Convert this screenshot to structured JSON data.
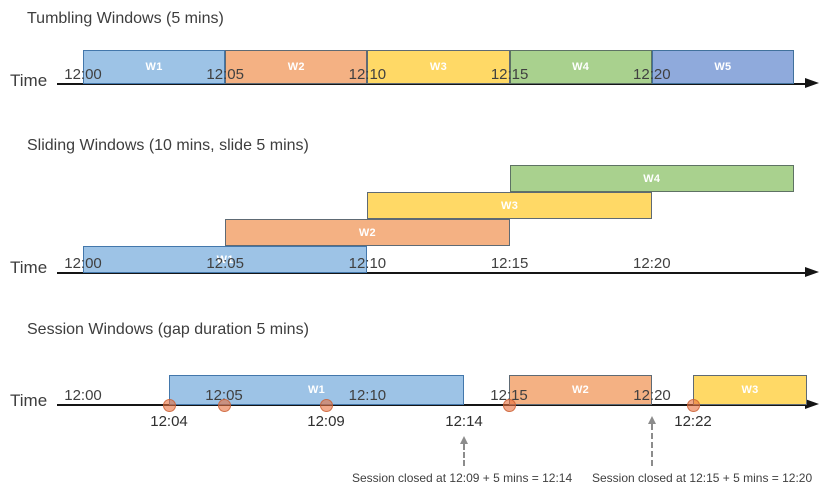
{
  "sections": [
    {
      "title": "Tumbling Windows (5 mins)",
      "time_label": "Time",
      "axis_ticks": [
        "12:00",
        "12:05",
        "12:10",
        "12:15",
        "12:20"
      ],
      "windows": [
        {
          "label": "W1",
          "start": "12:00",
          "end": "12:05",
          "color": "blue"
        },
        {
          "label": "W2",
          "start": "12:05",
          "end": "12:10",
          "color": "orange"
        },
        {
          "label": "W3",
          "start": "12:10",
          "end": "12:15",
          "color": "yellow"
        },
        {
          "label": "W4",
          "start": "12:15",
          "end": "12:20",
          "color": "green"
        },
        {
          "label": "W5",
          "start": "12:20",
          "end": null,
          "color": "indigo"
        }
      ]
    },
    {
      "title": "Sliding Windows (10 mins, slide 5 mins)",
      "time_label": "Time",
      "axis_ticks": [
        "12:00",
        "12:05",
        "12:10",
        "12:15",
        "12:20"
      ],
      "windows": [
        {
          "label": "W1",
          "start": "12:00",
          "end": "12:10",
          "color": "blue",
          "row": 0
        },
        {
          "label": "W2",
          "start": "12:05",
          "end": "12:15",
          "color": "orange",
          "row": 1
        },
        {
          "label": "W3",
          "start": "12:10",
          "end": "12:20",
          "color": "yellow",
          "row": 2
        },
        {
          "label": "W4",
          "start": "12:15",
          "end": null,
          "color": "green",
          "row": 3
        }
      ]
    },
    {
      "title": "Session Windows (gap duration 5 mins)",
      "time_label": "Time",
      "axis_ticks": [
        "12:00",
        "12:05",
        "12:10",
        "12:15",
        "12:20"
      ],
      "windows": [
        {
          "label": "W1",
          "start": "12:04",
          "end": "12:14",
          "color": "blue"
        },
        {
          "label": "W2",
          "start": "12:15",
          "end": "12:20",
          "color": "orange"
        },
        {
          "label": "W3",
          "start": "12:22",
          "end": null,
          "color": "yellow"
        }
      ],
      "event_dots": [
        "12:04",
        "12:05",
        "12:09",
        "12:15",
        "12:22"
      ],
      "below_axis_labels": [
        "12:04",
        "12:09",
        "12:14",
        "12:22"
      ],
      "annotations": [
        {
          "text": "Session closed at 12:09 + 5 mins = 12:14",
          "arrow_time": "12:14"
        },
        {
          "text": "Session closed at 12:15 + 5 mins = 12:20",
          "arrow_time": "12:20"
        }
      ]
    }
  ],
  "palette": {
    "blue": {
      "fill": "#9DC3E6",
      "border": "#4377AB"
    },
    "orange": {
      "fill": "#F4B183",
      "border": "#5E6A74"
    },
    "yellow": {
      "fill": "#FFD966",
      "border": "#5E6A74"
    },
    "green": {
      "fill": "#A9D18E",
      "border": "#5E7264"
    },
    "indigo": {
      "fill": "#8FAADC",
      "border": "#41719C"
    },
    "window_label_text": "#FFFFFF",
    "event_dot": "#E8703E",
    "axis": "#151515",
    "text_dark": "#3D3D3D",
    "annotation_gray": "#8C8C8C"
  }
}
